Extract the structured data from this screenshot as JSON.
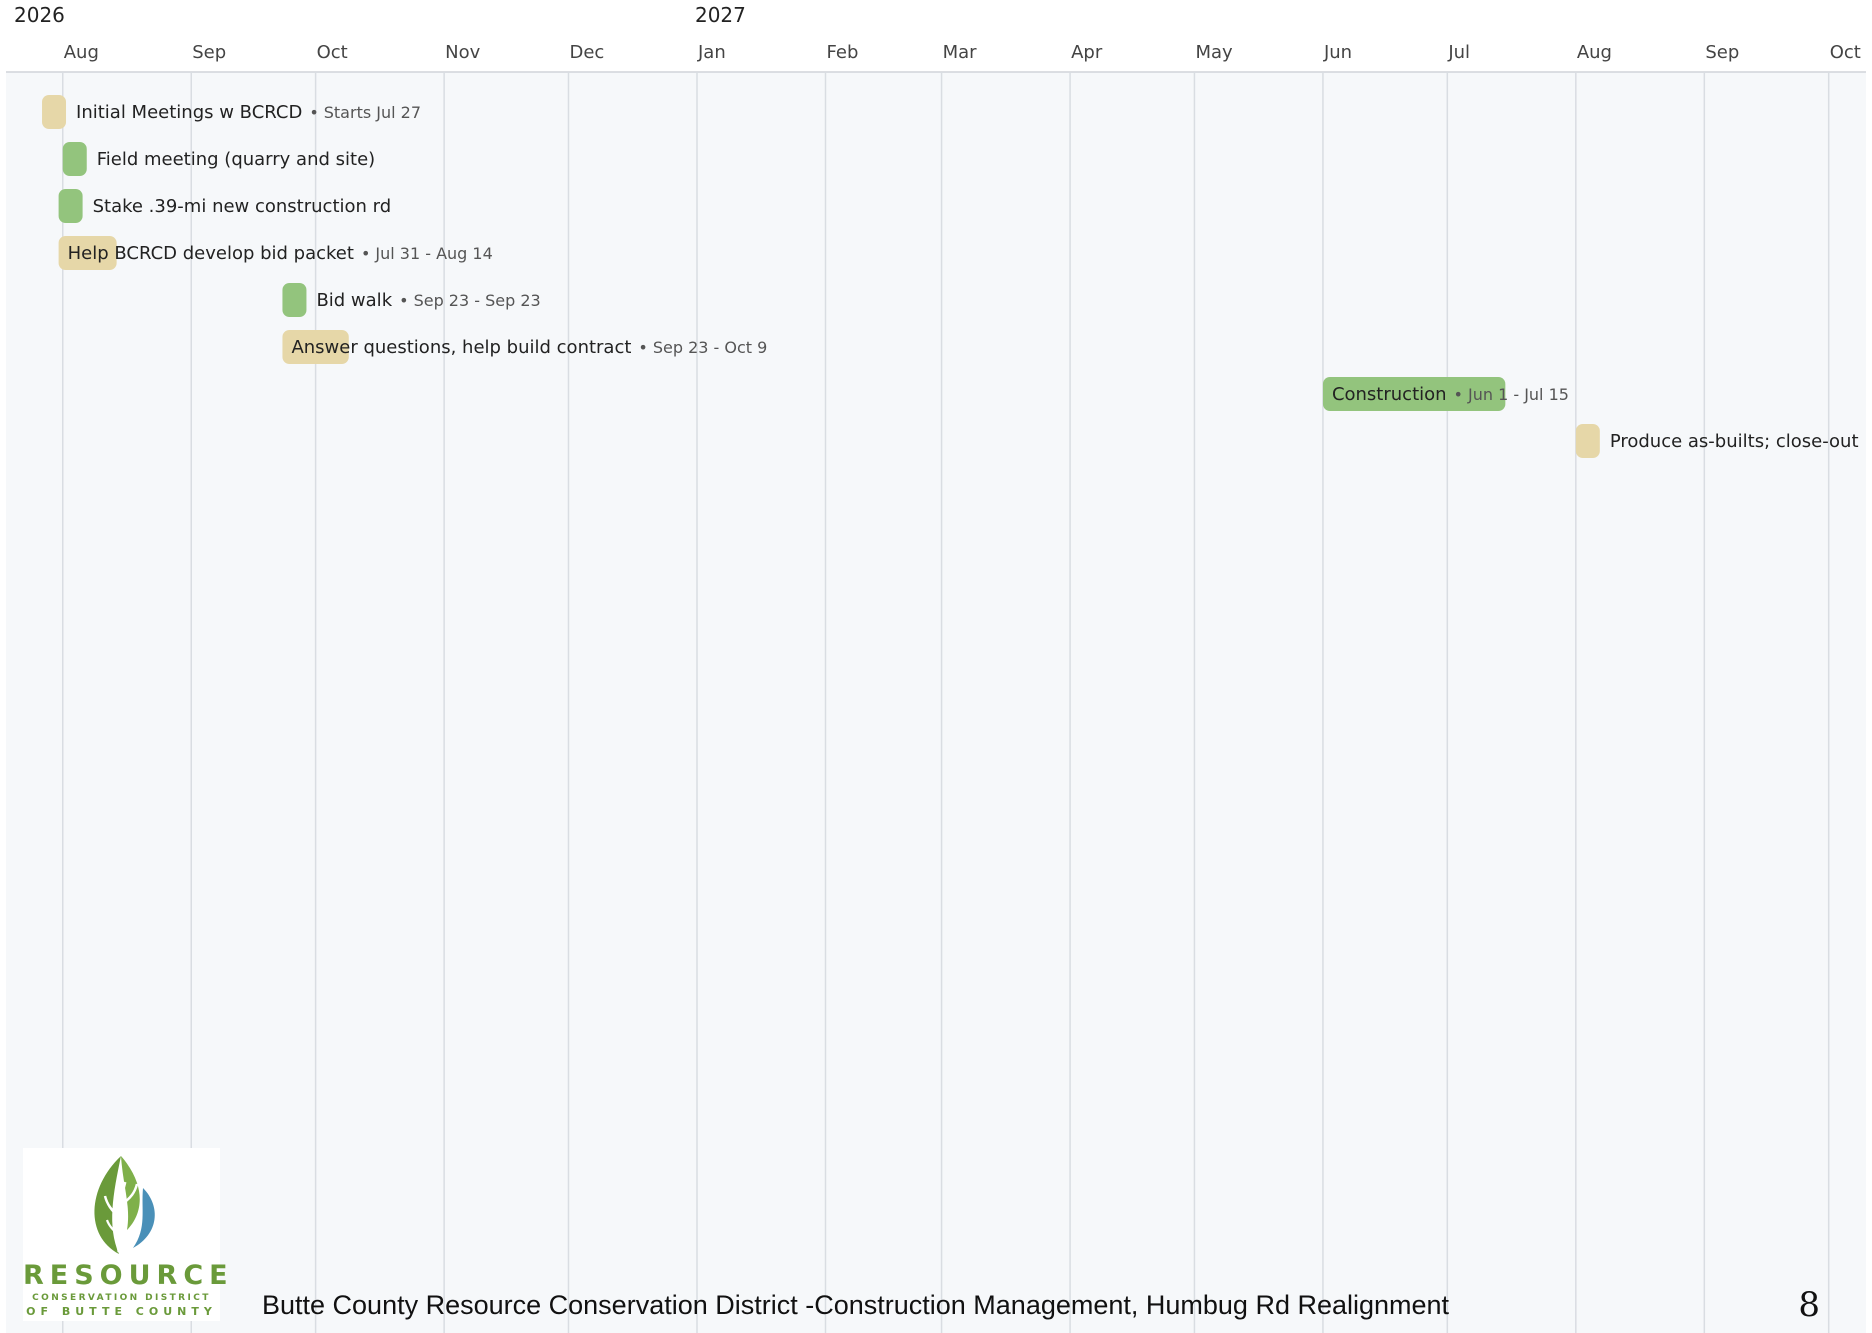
{
  "chart_data": {
    "type": "gantt",
    "timeline": {
      "years": [
        {
          "label": "2026",
          "date": "2026-07-20"
        },
        {
          "label": "2027",
          "date": "2027-01-01"
        }
      ],
      "months": [
        {
          "label": "Aug",
          "date": "2026-08-01"
        },
        {
          "label": "Sep",
          "date": "2026-09-01"
        },
        {
          "label": "Oct",
          "date": "2026-10-01"
        },
        {
          "label": "Nov",
          "date": "2026-11-01"
        },
        {
          "label": "Dec",
          "date": "2026-12-01"
        },
        {
          "label": "Jan",
          "date": "2027-01-01"
        },
        {
          "label": "Feb",
          "date": "2027-02-01"
        },
        {
          "label": "Mar",
          "date": "2027-03-01"
        },
        {
          "label": "Apr",
          "date": "2027-04-01"
        },
        {
          "label": "May",
          "date": "2027-05-01"
        },
        {
          "label": "Jun",
          "date": "2027-06-01"
        },
        {
          "label": "Jul",
          "date": "2027-07-01"
        },
        {
          "label": "Aug",
          "date": "2027-08-01"
        },
        {
          "label": "Sep",
          "date": "2027-09-01"
        },
        {
          "label": "Oct",
          "date": "2027-10-01"
        }
      ],
      "range": [
        "2026-07-20",
        "2027-10-10"
      ],
      "grid": true
    },
    "tasks": [
      {
        "name": "Initial Meetings w BCRCD",
        "dates_label": "Starts Jul 27",
        "start": "2026-07-27",
        "end": "2026-07-29",
        "category": "planning"
      },
      {
        "name": "Field meeting (quarry and site)",
        "dates_label": "",
        "start": "2026-08-01",
        "end": "2026-08-03",
        "category": "field"
      },
      {
        "name": "Stake .39-mi new construction rd",
        "dates_label": "",
        "start": "2026-07-31",
        "end": "2026-08-02",
        "category": "field"
      },
      {
        "name": "Help BCRCD develop bid packet",
        "dates_label": "Jul 31 - Aug 14",
        "start": "2026-07-31",
        "end": "2026-08-14",
        "category": "planning"
      },
      {
        "name": "Bid walk",
        "dates_label": "Sep 23 - Sep 23",
        "start": "2026-09-23",
        "end": "2026-09-25",
        "category": "field"
      },
      {
        "name": "Answer questions, help build contract",
        "dates_label": "Sep 23 - Oct 9",
        "start": "2026-09-23",
        "end": "2026-10-09",
        "category": "planning"
      },
      {
        "name": "Construction",
        "dates_label": "Jun 1 - Jul 15",
        "start": "2027-06-01",
        "end": "2027-07-15",
        "category": "field"
      },
      {
        "name": "Produce as-builts; close-out",
        "dates_label": "",
        "start": "2027-08-01",
        "end": "2027-08-03",
        "category": "planning"
      }
    ],
    "colors": {
      "planning": "#e6d7a8",
      "field": "#93c47d",
      "grid": "#d9dde2",
      "background": "#f6f8fa"
    }
  },
  "logo": {
    "word": "RESOURCE",
    "line1": "CONSERVATION DISTRICT",
    "line2": "OF BUTTE COUNTY",
    "colors": {
      "leaf_green": "#6a9a3a",
      "water_blue": "#4a90b8",
      "text": "#6a9a3a"
    }
  },
  "footer": {
    "title": "Butte County Resource Conservation District -Construction Management, Humbug Rd Realignment",
    "page_number": "8"
  }
}
